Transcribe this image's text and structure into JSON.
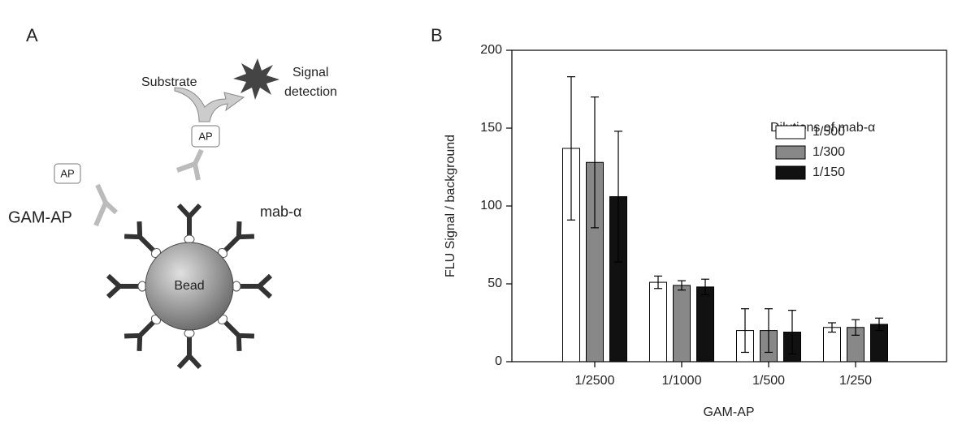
{
  "panel_a": {
    "label": "A",
    "substrate": "Substrate",
    "signal": "Signal",
    "detection": "detection",
    "ap_free": "AP",
    "ap_bound": "AP",
    "gam_ap": "GAM-AP",
    "mab": "mab-α",
    "bead": "Bead"
  },
  "chart_data": {
    "type": "bar",
    "panel_label": "B",
    "y_label": "FLU Signal / background",
    "x_label": "GAM-AP",
    "legend_title": "Dilutions of mab-α",
    "categories": [
      "1/2500",
      "1/1000",
      "1/500",
      "1/250"
    ],
    "series": [
      {
        "name": "1/500",
        "color": "#ffffff",
        "values": [
          137,
          51,
          20,
          22
        ],
        "errors": [
          46,
          4,
          14,
          3
        ]
      },
      {
        "name": "1/300",
        "color": "#888888",
        "values": [
          128,
          49,
          20,
          22
        ],
        "errors": [
          42,
          3,
          14,
          5
        ]
      },
      {
        "name": "1/150",
        "color": "#111111",
        "values": [
          106,
          48,
          19,
          24
        ],
        "errors": [
          42,
          5,
          14,
          4
        ]
      }
    ],
    "ylim": [
      0,
      200
    ],
    "yticks": [
      0,
      50,
      100,
      150,
      200
    ]
  }
}
